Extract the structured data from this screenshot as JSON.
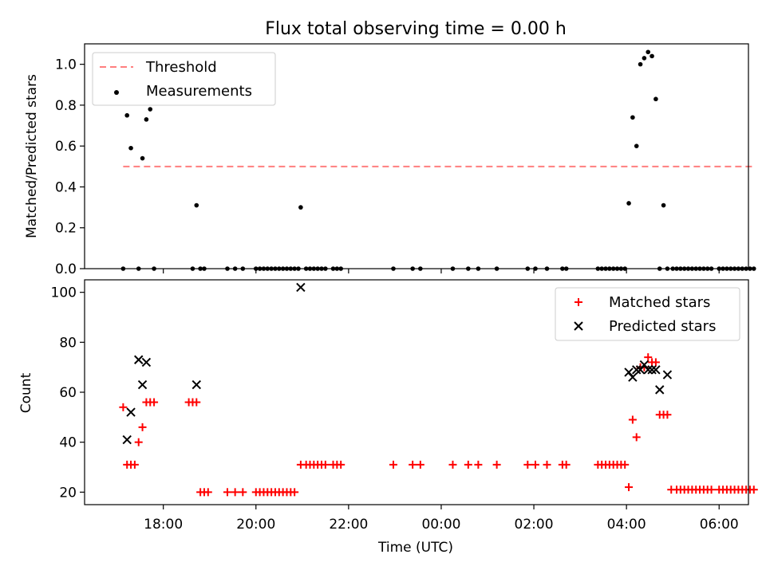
{
  "chart_data": [
    {
      "type": "scatter",
      "title": "Flux total observing time = 0.00 h",
      "xlabel": "",
      "ylabel": "Matched/Predicted stars",
      "xlim": [
        "16:18",
        "06:38"
      ],
      "ylim": [
        0,
        1.1
      ],
      "yticks": [
        "0.0",
        "0.2",
        "0.4",
        "0.6",
        "0.8",
        "1.0"
      ],
      "legend": {
        "position": "upper-left",
        "entries": [
          "Threshold",
          "Measurements"
        ]
      },
      "colors": {
        "threshold": "#ff7f7f",
        "measurements": "#000000"
      },
      "threshold": {
        "name": "Threshold",
        "y": 0.5,
        "x_start": "17:08",
        "x_end": "06:45"
      },
      "series": [
        {
          "name": "Measurements",
          "x": [
            "17:08",
            "17:13",
            "17:18",
            "17:28",
            "17:33",
            "17:38",
            "17:43",
            "17:48",
            "18:38",
            "18:43",
            "18:48",
            "18:53",
            "19:23",
            "19:33",
            "19:43",
            "20:00",
            "20:05",
            "20:10",
            "20:15",
            "20:20",
            "20:25",
            "20:30",
            "20:35",
            "20:40",
            "20:45",
            "20:50",
            "20:55",
            "20:58",
            "21:05",
            "21:10",
            "21:15",
            "21:20",
            "21:25",
            "21:30",
            "21:40",
            "21:45",
            "21:50",
            "22:58",
            "23:23",
            "23:33",
            "00:15",
            "00:35",
            "00:48",
            "01:12",
            "01:52",
            "02:02",
            "02:17",
            "02:37",
            "02:42",
            "03:23",
            "03:28",
            "03:33",
            "03:38",
            "03:43",
            "03:48",
            "03:53",
            "03:58",
            "04:03",
            "04:08",
            "04:13",
            "04:18",
            "04:23",
            "04:28",
            "04:33",
            "04:38",
            "04:43",
            "04:48",
            "04:53",
            "05:00",
            "05:05",
            "05:10",
            "05:15",
            "05:20",
            "05:25",
            "05:30",
            "05:35",
            "05:40",
            "05:45",
            "05:50",
            "06:00",
            "06:05",
            "06:10",
            "06:15",
            "06:20",
            "06:25",
            "06:30",
            "06:35",
            "06:40",
            "06:45"
          ],
          "y": [
            0,
            0.75,
            0.59,
            0,
            0.54,
            0.73,
            0.78,
            0,
            0,
            0.31,
            0,
            0,
            0,
            0,
            0,
            0,
            0,
            0,
            0,
            0,
            0,
            0,
            0,
            0,
            0,
            0,
            0,
            0.3,
            0,
            0,
            0,
            0,
            0,
            0,
            0,
            0,
            0,
            0,
            0,
            0,
            0,
            0,
            0,
            0,
            0,
            0,
            0,
            0,
            0,
            0,
            0,
            0,
            0,
            0,
            0,
            0,
            0,
            0.32,
            0.74,
            0.6,
            1.0,
            1.03,
            1.06,
            1.04,
            0.83,
            0,
            0.31,
            0,
            0,
            0,
            0,
            0,
            0,
            0,
            0,
            0,
            0,
            0,
            0,
            0,
            0,
            0,
            0,
            0,
            0,
            0,
            0,
            0,
            0
          ]
        }
      ]
    },
    {
      "type": "scatter",
      "title": "",
      "xlabel": "Time (UTC)",
      "ylabel": "Count",
      "xlim": [
        "16:18",
        "06:38"
      ],
      "ylim": [
        15,
        105
      ],
      "xticks": [
        "18:00",
        "20:00",
        "22:00",
        "00:00",
        "02:00",
        "04:00",
        "06:00"
      ],
      "yticks": [
        "20",
        "40",
        "60",
        "80",
        "100"
      ],
      "legend": {
        "position": "upper-right",
        "entries": [
          "Matched stars",
          "Predicted stars"
        ]
      },
      "colors": {
        "matched": "#ff0000",
        "predicted": "#000000"
      },
      "series": [
        {
          "name": "Matched stars",
          "x": [
            "17:08",
            "17:13",
            "17:18",
            "17:23",
            "17:28",
            "17:33",
            "17:38",
            "17:43",
            "17:48",
            "18:33",
            "18:38",
            "18:43",
            "18:48",
            "18:53",
            "18:58",
            "19:23",
            "19:33",
            "19:43",
            "20:00",
            "20:05",
            "20:10",
            "20:15",
            "20:20",
            "20:25",
            "20:30",
            "20:35",
            "20:40",
            "20:45",
            "20:50",
            "20:58",
            "21:05",
            "21:10",
            "21:15",
            "21:20",
            "21:25",
            "21:30",
            "21:40",
            "21:45",
            "21:50",
            "22:58",
            "23:23",
            "23:33",
            "00:15",
            "00:35",
            "00:48",
            "01:12",
            "01:52",
            "02:02",
            "02:17",
            "02:37",
            "02:42",
            "03:23",
            "03:28",
            "03:33",
            "03:38",
            "03:43",
            "03:48",
            "03:53",
            "03:58",
            "04:03",
            "04:08",
            "04:13",
            "04:18",
            "04:23",
            "04:28",
            "04:33",
            "04:38",
            "04:43",
            "04:48",
            "04:53",
            "04:58",
            "05:05",
            "05:10",
            "05:15",
            "05:20",
            "05:25",
            "05:30",
            "05:35",
            "05:40",
            "05:45",
            "05:50",
            "06:00",
            "06:05",
            "06:10",
            "06:15",
            "06:20",
            "06:25",
            "06:30",
            "06:35",
            "06:40",
            "06:45"
          ],
          "y": [
            54,
            31,
            31,
            31,
            40,
            46,
            56,
            56,
            56,
            56,
            56,
            56,
            20,
            20,
            20,
            20,
            20,
            20,
            20,
            20,
            20,
            20,
            20,
            20,
            20,
            20,
            20,
            20,
            20,
            31,
            31,
            31,
            31,
            31,
            31,
            31,
            31,
            31,
            31,
            31,
            31,
            31,
            31,
            31,
            31,
            31,
            31,
            31,
            31,
            31,
            31,
            31,
            31,
            31,
            31,
            31,
            31,
            31,
            31,
            22,
            49,
            42,
            70,
            70,
            74,
            72,
            72,
            51,
            51,
            51,
            21,
            21,
            21,
            21,
            21,
            21,
            21,
            21,
            21,
            21,
            21,
            21,
            21,
            21,
            21,
            21,
            21,
            21,
            21,
            21,
            21
          ]
        },
        {
          "name": "Predicted stars",
          "x": [
            "17:13",
            "17:18",
            "17:28",
            "17:33",
            "17:38",
            "18:43",
            "20:58",
            "04:03",
            "04:08",
            "04:13",
            "04:18",
            "04:23",
            "04:28",
            "04:33",
            "04:38",
            "04:43",
            "04:53"
          ],
          "y": [
            41,
            52,
            73,
            63,
            72,
            63,
            102,
            68,
            66,
            69,
            69,
            71,
            69,
            69,
            69,
            61,
            67
          ]
        }
      ]
    }
  ]
}
